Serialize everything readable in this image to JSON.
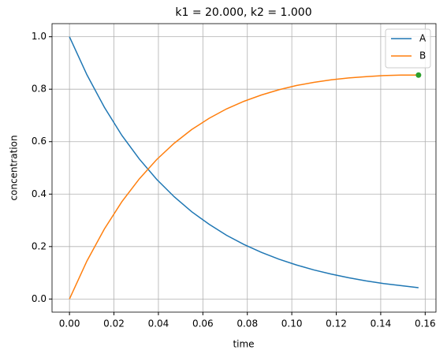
{
  "chart_data": {
    "type": "line",
    "title": "k1 = 20.000, k2 = 1.000",
    "x_label": "time",
    "y_label": "concentration",
    "x": [
      0,
      0.00785,
      0.0157,
      0.02355,
      0.0314,
      0.03925,
      0.0471,
      0.05495,
      0.0628,
      0.07065,
      0.0785,
      0.08635,
      0.0942,
      0.10205,
      0.1099,
      0.11775,
      0.1256,
      0.13345,
      0.1413,
      0.14915,
      0.157
    ],
    "series": [
      {
        "name": "A",
        "color": "#1f77b4",
        "values": [
          1,
          0.855,
          0.731,
          0.624,
          0.534,
          0.456,
          0.39,
          0.333,
          0.285,
          0.243,
          0.208,
          0.178,
          0.152,
          0.13,
          0.111,
          0.095,
          0.081,
          0.069,
          0.059,
          0.051,
          0.043
        ]
      },
      {
        "name": "B",
        "color": "#ff7f0e",
        "values": [
          0,
          0.145,
          0.267,
          0.371,
          0.458,
          0.532,
          0.594,
          0.646,
          0.689,
          0.725,
          0.754,
          0.778,
          0.798,
          0.814,
          0.826,
          0.836,
          0.843,
          0.848,
          0.852,
          0.854,
          0.854
        ]
      }
    ],
    "point": {
      "x": 0.157,
      "y": 0.854,
      "color": "#2ca02c"
    },
    "xlim": [
      -0.00785,
      0.16485
    ],
    "ylim": [
      -0.05,
      1.05
    ],
    "xticks": [
      {
        "value": 0,
        "label": "0.00"
      },
      0.02,
      0.04,
      0.06,
      0.08,
      {
        "value": 0.1,
        "label": "0.10"
      },
      0.12,
      0.14,
      0.16
    ],
    "yticks": [
      {
        "value": 0,
        "label": "0.0"
      },
      0.2,
      0.4,
      0.6,
      0.8,
      {
        "value": 1,
        "label": "1.0"
      }
    ],
    "grid": true,
    "legend": "upper-right"
  }
}
